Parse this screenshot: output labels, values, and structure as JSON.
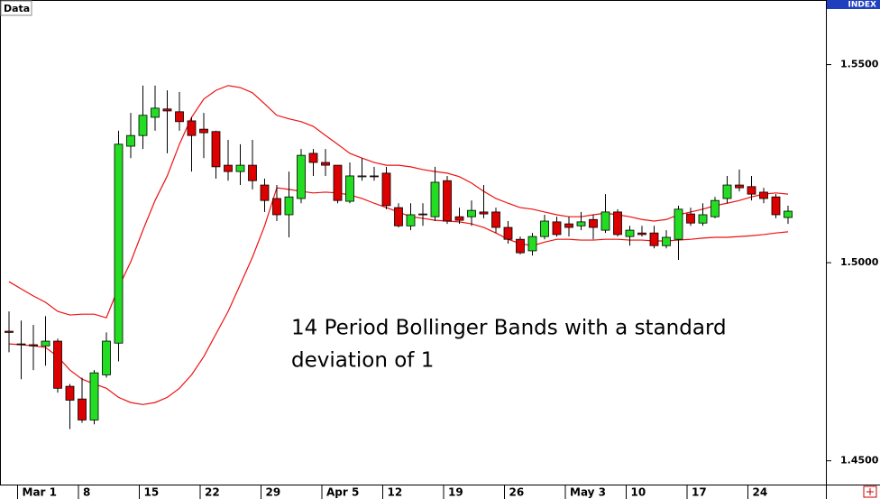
{
  "chart_data": {
    "type": "candlestick",
    "label": "Data",
    "axis_label": "INDEX",
    "annotation": [
      "14 Period Bollinger Bands with a standard",
      "deviation of 1"
    ],
    "categories": [
      null,
      "Mar 1",
      null,
      null,
      null,
      null,
      "8",
      null,
      null,
      null,
      null,
      "15",
      null,
      null,
      null,
      null,
      "22",
      null,
      null,
      null,
      null,
      "29",
      null,
      null,
      null,
      null,
      "Apr 5",
      null,
      null,
      null,
      null,
      "12",
      null,
      null,
      null,
      null,
      "19",
      null,
      null,
      null,
      null,
      "26",
      null,
      null,
      null,
      null,
      "May 3",
      null,
      null,
      null,
      null,
      "10",
      null,
      null,
      null,
      null,
      "17",
      null,
      null,
      null,
      null,
      "24",
      null,
      null,
      null
    ],
    "open": [
      1.4827,
      1.4795,
      1.4793,
      1.479,
      1.4802,
      1.4688,
      1.4656,
      1.4603,
      1.4717,
      1.4797,
      1.5294,
      1.5321,
      1.5367,
      1.5388,
      1.5381,
      1.5358,
      1.5337,
      1.5331,
      1.5246,
      1.523,
      1.5246,
      1.5196,
      1.5162,
      1.5121,
      1.5162,
      1.5276,
      1.5253,
      1.5246,
      1.5155,
      1.5217,
      1.5219,
      1.5226,
      1.5139,
      1.5093,
      1.5123,
      1.5116,
      1.5207,
      1.5116,
      1.5116,
      1.5128,
      1.5128,
      1.5089,
      1.5059,
      1.503,
      1.5066,
      1.5103,
      1.5098,
      1.5093,
      1.5109,
      1.5082,
      1.5128,
      1.5066,
      1.5075,
      1.5075,
      1.5043,
      1.5059,
      1.5123,
      1.51,
      1.5116,
      1.5162,
      1.5196,
      1.5192,
      1.5178,
      1.5166,
      1.5114
    ],
    "high": [
      1.4877,
      1.4854,
      1.4843,
      1.4865,
      1.4808,
      1.4694,
      1.471,
      1.4729,
      1.4824,
      1.5333,
      1.5378,
      1.5447,
      1.5447,
      1.5435,
      1.5431,
      1.5367,
      1.5378,
      1.5333,
      1.531,
      1.5299,
      1.531,
      1.5212,
      1.5196,
      1.523,
      1.5287,
      1.5287,
      1.5287,
      1.5246,
      1.5253,
      1.5264,
      1.5242,
      1.5242,
      1.515,
      1.515,
      1.515,
      1.5242,
      1.5219,
      1.5139,
      1.5157,
      1.5196,
      1.5139,
      1.5105,
      1.5066,
      1.5075,
      1.5121,
      1.5116,
      1.5116,
      1.5128,
      1.5121,
      1.5173,
      1.5135,
      1.5093,
      1.5093,
      1.5093,
      1.5082,
      1.5144,
      1.5139,
      1.515,
      1.5166,
      1.5219,
      1.5235,
      1.5219,
      1.5189,
      1.5173,
      1.5144
    ],
    "low": [
      1.4774,
      1.4706,
      1.4729,
      1.474,
      1.4672,
      1.458,
      1.4596,
      1.4592,
      1.471,
      1.4751,
      1.5264,
      1.5287,
      1.5333,
      1.5276,
      1.5333,
      1.523,
      1.5264,
      1.5212,
      1.5207,
      1.5196,
      1.5185,
      1.5128,
      1.5105,
      1.5064,
      1.515,
      1.5219,
      1.5219,
      1.515,
      1.515,
      1.5207,
      1.5207,
      1.5135,
      1.5089,
      1.5082,
      1.5093,
      1.5105,
      1.5098,
      1.5098,
      1.5093,
      1.5112,
      1.5075,
      1.5048,
      1.5021,
      1.5018,
      1.5059,
      1.5066,
      1.5066,
      1.5082,
      1.5059,
      1.5075,
      1.5066,
      1.5043,
      1.5066,
      1.5036,
      1.5036,
      1.5007,
      1.5093,
      1.5093,
      1.5112,
      1.515,
      1.518,
      1.5157,
      1.515,
      1.5112,
      1.5098
    ],
    "close": [
      1.4824,
      1.4793,
      1.479,
      1.4802,
      1.4683,
      1.4653,
      1.4603,
      1.4722,
      1.4802,
      1.5299,
      1.5321,
      1.5372,
      1.539,
      1.5383,
      1.5356,
      1.5321,
      1.5328,
      1.5242,
      1.523,
      1.5246,
      1.5207,
      1.5157,
      1.5121,
      1.5166,
      1.5271,
      1.5253,
      1.5246,
      1.5157,
      1.5219,
      1.5219,
      1.5217,
      1.5144,
      1.5093,
      1.5121,
      1.5121,
      1.5203,
      1.5105,
      1.5107,
      1.5132,
      1.5123,
      1.5089,
      1.5059,
      1.5025,
      1.5066,
      1.5105,
      1.5071,
      1.5089,
      1.5103,
      1.5089,
      1.5128,
      1.5071,
      1.5082,
      1.5071,
      1.5043,
      1.5064,
      1.5135,
      1.51,
      1.5121,
      1.5157,
      1.5196,
      1.5189,
      1.5173,
      1.5162,
      1.5121,
      1.513
    ],
    "up_color": "#22dd22",
    "down_color": "#dd0000",
    "series": [
      {
        "color": "#ee1111",
        "values": [
          1.4952,
          1.4934,
          1.4916,
          1.49,
          1.4877,
          1.4868,
          1.487,
          1.487,
          1.4861,
          1.4938,
          1.5002,
          1.5082,
          1.5157,
          1.5219,
          1.5299,
          1.5367,
          1.5413,
          1.5435,
          1.5447,
          1.5442,
          1.5429,
          1.5401,
          1.5372,
          1.5363,
          1.5356,
          1.5344,
          1.5321,
          1.5299,
          1.5276,
          1.5264,
          1.5253,
          1.5246,
          1.5246,
          1.5242,
          1.5235,
          1.523,
          1.5226,
          1.5217,
          1.5201,
          1.518,
          1.5162,
          1.515,
          1.5139,
          1.5135,
          1.5128,
          1.5121,
          1.5116,
          1.5116,
          1.5121,
          1.5125,
          1.5121,
          1.5116,
          1.5109,
          1.5105,
          1.5109,
          1.5121,
          1.5128,
          1.5135,
          1.5144,
          1.515,
          1.5157,
          1.5166,
          1.5173,
          1.5176,
          1.5173
        ]
      },
      {
        "color": "#ee1111",
        "values": [
          1.4795,
          1.4793,
          1.479,
          1.4786,
          1.4763,
          1.4729,
          1.4706,
          1.4694,
          1.4683,
          1.466,
          1.4647,
          1.4642,
          1.4647,
          1.466,
          1.4683,
          1.4717,
          1.4763,
          1.482,
          1.4877,
          1.4945,
          1.5014,
          1.5093,
          1.5189,
          1.5185,
          1.518,
          1.5176,
          1.5178,
          1.5176,
          1.5171,
          1.5162,
          1.515,
          1.5139,
          1.5128,
          1.5116,
          1.5112,
          1.5107,
          1.5105,
          1.5103,
          1.5098,
          1.5089,
          1.5075,
          1.5059,
          1.5048,
          1.5043,
          1.5052,
          1.5059,
          1.5059,
          1.5057,
          1.5057,
          1.5059,
          1.5059,
          1.5057,
          1.5057,
          1.5055,
          1.5055,
          1.5057,
          1.5059,
          1.5062,
          1.5064,
          1.5064,
          1.5066,
          1.5068,
          1.5071,
          1.5075,
          1.5078
        ]
      }
    ],
    "ylim": [
      1.444,
      1.5663
    ],
    "yticks": [
      {
        "value": 1.45,
        "label": "1.4500"
      },
      {
        "value": 1.5,
        "label": "1.5000"
      },
      {
        "value": 1.55,
        "label": "1.5500"
      }
    ]
  }
}
